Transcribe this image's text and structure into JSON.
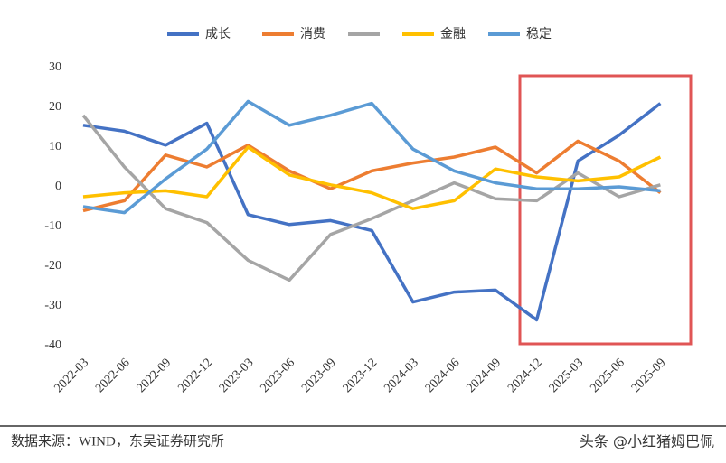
{
  "chart_data": {
    "type": "line",
    "categories": [
      "2022-03",
      "2022-06",
      "2022-09",
      "2022-12",
      "2023-03",
      "2023-06",
      "2023-09",
      "2023-12",
      "2024-03",
      "2024-06",
      "2024-09",
      "2024-12",
      "2025-03",
      "2025-06",
      "2025-09"
    ],
    "series": [
      {
        "name": "成长",
        "color": "#4472c4",
        "values": [
          15.5,
          14,
          10.5,
          16,
          -7,
          -9.5,
          -8.5,
          -11,
          -29,
          -26.5,
          -26,
          -33.5,
          6.5,
          13,
          21
        ]
      },
      {
        "name": "消费",
        "color": "#ed7d31",
        "values": [
          -6,
          -3.5,
          8,
          5,
          10.5,
          4,
          -0.5,
          4,
          6,
          7.5,
          10,
          3.5,
          11.5,
          6.5,
          -1.5
        ]
      },
      {
        "name": null,
        "color": "#a5a5a5",
        "values": [
          18,
          5,
          -5.5,
          -9,
          -18.5,
          -23.5,
          -12,
          -8,
          -3.5,
          1,
          -3,
          -3.5,
          3.5,
          -2.5,
          0.5
        ]
      },
      {
        "name": "金融",
        "color": "#ffc000",
        "values": [
          -2.5,
          -1.5,
          -1,
          -2.5,
          10,
          3,
          0.5,
          -1.5,
          -5.5,
          -3.5,
          4.5,
          2.5,
          1.5,
          2.5,
          7.5
        ]
      },
      {
        "name": "稳定",
        "color": "#5b9bd5",
        "values": [
          -5,
          -6.5,
          2,
          9.5,
          21.5,
          15.5,
          18,
          21,
          9.5,
          4,
          1,
          -0.5,
          -0.5,
          0,
          -1
        ]
      }
    ],
    "ylim": [
      -40,
      30
    ],
    "yticks": [
      -40,
      -30,
      -20,
      -10,
      0,
      10,
      20,
      30
    ],
    "grid": false,
    "legend": "top"
  },
  "footer": {
    "source": "数据来源：WIND，东吴证券研究所",
    "watermark": "头条 @小红猪姆巴佩"
  }
}
